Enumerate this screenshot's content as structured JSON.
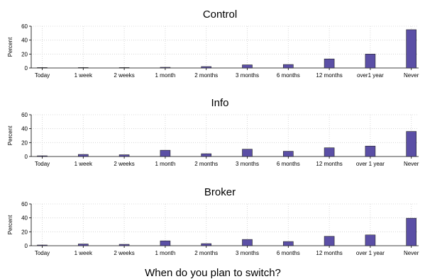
{
  "chart_data": {
    "type": "bar",
    "xlabel": "When do you plan to switch?",
    "bar_color": "#5b4fa6",
    "bar_edge_color": "#222222",
    "grid": true,
    "panels": [
      {
        "title": "Control",
        "ylabel": "Percent",
        "ylim": [
          0,
          60
        ],
        "yticks": [
          0,
          20,
          40,
          60
        ],
        "categories": [
          "Today",
          "1 week",
          "2 weeks",
          "1 month",
          "2 months",
          "3 months",
          "6 months",
          "12 months",
          "over1 year",
          "Never"
        ],
        "values": [
          0.3,
          0.3,
          0.3,
          1,
          2,
          4.5,
          5,
          13,
          20,
          55
        ]
      },
      {
        "title": "Info",
        "ylabel": "Percent",
        "ylim": [
          0,
          60
        ],
        "yticks": [
          0,
          20,
          40,
          60
        ],
        "categories": [
          "Today",
          "1 week",
          "2 weeks",
          "1 month",
          "2 months",
          "3 months",
          "6 months",
          "12 months",
          "over 1 year",
          "Never"
        ],
        "values": [
          1,
          3,
          2.5,
          9,
          4,
          10.5,
          7.5,
          12.5,
          15,
          36
        ]
      },
      {
        "title": "Broker",
        "ylabel": "Percent",
        "ylim": [
          0,
          60
        ],
        "yticks": [
          0,
          20,
          40,
          60
        ],
        "categories": [
          "Today",
          "1 week",
          "2 weeks",
          "1 month",
          "2 months",
          "3 months",
          "6 months",
          "12 months",
          "over 1 year",
          "Never"
        ],
        "values": [
          1,
          2.5,
          2,
          7,
          3,
          9,
          6,
          13.5,
          15.5,
          39.5
        ]
      }
    ]
  }
}
